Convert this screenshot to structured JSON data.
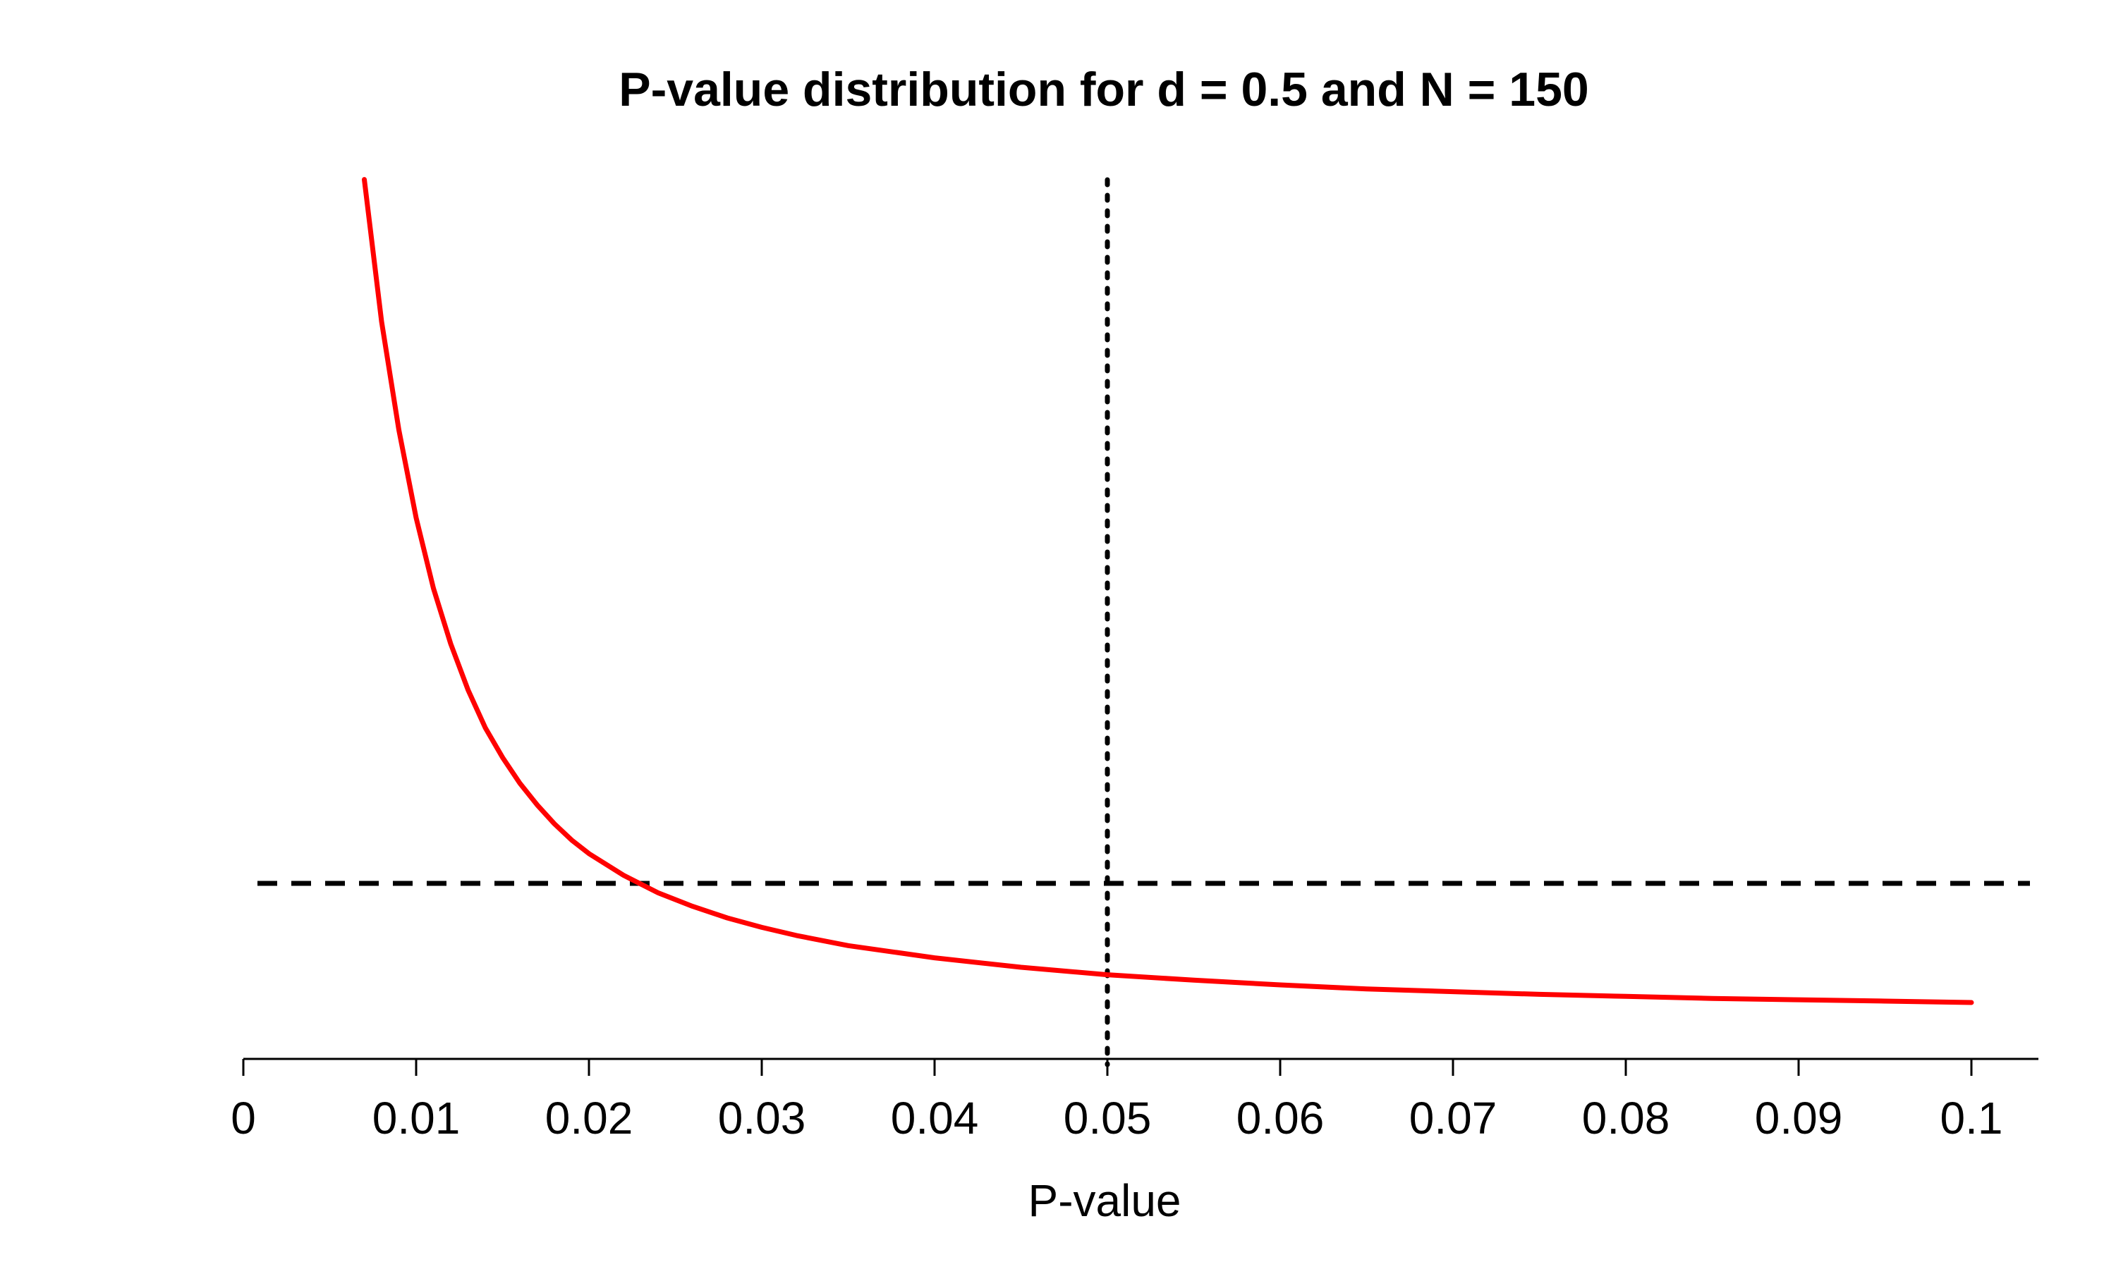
{
  "chart_data": {
    "type": "line",
    "title": "P-value distribution for d = 0.5 and N = 150",
    "xlabel": "P-value",
    "ylabel": "",
    "xlim": [
      0,
      0.1
    ],
    "x_ticks": [
      0,
      0.01,
      0.02,
      0.03,
      0.04,
      0.05,
      0.06,
      0.07,
      0.08,
      0.09,
      0.1
    ],
    "x_tick_labels": [
      "0",
      "0.01",
      "0.02",
      "0.03",
      "0.04",
      "0.05",
      "0.06",
      "0.07",
      "0.08",
      "0.09",
      "0.1"
    ],
    "y_axis_shown": false,
    "grid": false,
    "legend": "none",
    "series": [
      {
        "color": "#ff0000",
        "style": "solid",
        "x": [
          0.007,
          0.008,
          0.009,
          0.01,
          0.011,
          0.012,
          0.013,
          0.014,
          0.015,
          0.016,
          0.017,
          0.018,
          0.019,
          0.02,
          0.022,
          0.024,
          0.026,
          0.028,
          0.03,
          0.032,
          0.035,
          0.04,
          0.045,
          0.05,
          0.055,
          0.06,
          0.065,
          0.07,
          0.075,
          0.08,
          0.085,
          0.09,
          0.095,
          0.1
        ],
        "y": [
          6.2,
          5.15,
          4.35,
          3.7,
          3.18,
          2.77,
          2.43,
          2.15,
          1.93,
          1.74,
          1.58,
          1.44,
          1.32,
          1.22,
          1.06,
          0.93,
          0.83,
          0.745,
          0.675,
          0.615,
          0.54,
          0.45,
          0.38,
          0.325,
          0.285,
          0.25,
          0.22,
          0.2,
          0.18,
          0.165,
          0.15,
          0.14,
          0.13,
          0.12
        ]
      }
    ],
    "reference_lines": [
      {
        "orientation": "horizontal",
        "y": 1,
        "style": "dashed",
        "color": "#000000"
      },
      {
        "orientation": "vertical",
        "x": 0.05,
        "style": "dotted",
        "color": "#000000"
      }
    ],
    "ylim": [
      0,
      6.25
    ]
  }
}
